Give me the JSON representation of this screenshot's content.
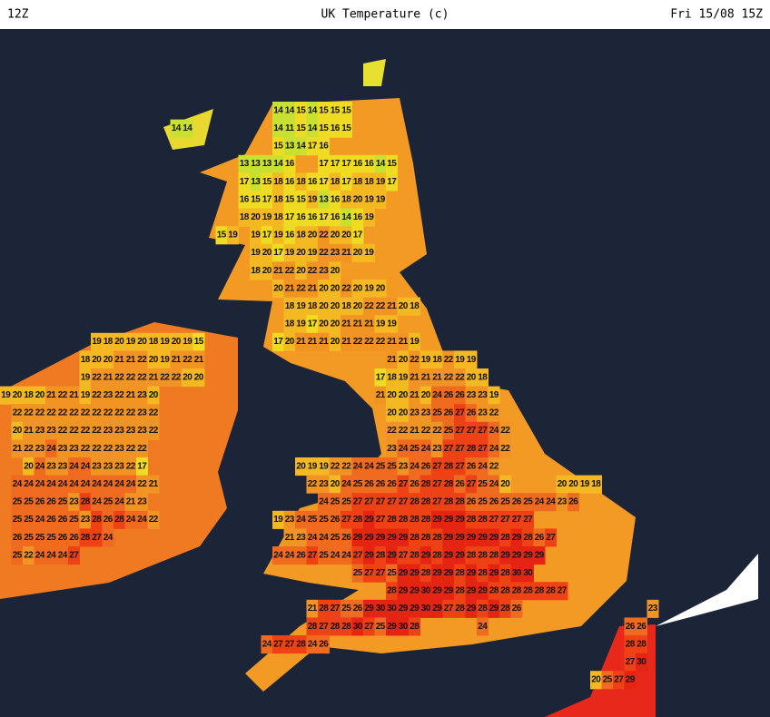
{
  "header": {
    "left": "12Z",
    "title": "UK Temperature (c)",
    "right": "Fri 15/08 15Z"
  },
  "map": {
    "temperature_rows": [
      [
        null,
        null,
        null,
        null,
        null,
        null,
        null,
        null,
        null,
        null,
        null,
        null,
        null,
        null,
        null,
        null,
        null,
        null,
        null,
        null,
        null,
        null,
        null,
        null,
        14,
        14,
        15,
        14,
        15,
        15,
        15
      ],
      [
        null,
        null,
        null,
        null,
        null,
        null,
        null,
        null,
        null,
        null,
        null,
        null,
        null,
        null,
        null,
        14,
        14,
        null,
        null,
        null,
        null,
        null,
        null,
        null,
        14,
        11,
        15,
        14,
        15,
        16,
        15
      ],
      [
        null,
        null,
        null,
        null,
        null,
        null,
        null,
        null,
        null,
        null,
        null,
        null,
        null,
        null,
        null,
        null,
        null,
        null,
        null,
        null,
        null,
        null,
        null,
        null,
        15,
        13,
        14,
        17,
        16
      ],
      [
        null,
        null,
        null,
        null,
        null,
        null,
        null,
        null,
        null,
        null,
        null,
        null,
        null,
        null,
        null,
        null,
        null,
        null,
        null,
        null,
        null,
        13,
        13,
        13,
        14,
        16,
        null,
        null,
        17,
        17,
        17,
        16,
        16,
        14,
        15
      ],
      [
        null,
        null,
        null,
        null,
        null,
        null,
        null,
        null,
        null,
        null,
        null,
        null,
        null,
        null,
        null,
        null,
        null,
        null,
        null,
        null,
        null,
        17,
        13,
        15,
        18,
        16,
        18,
        16,
        17,
        18,
        17,
        18,
        18,
        19,
        17
      ],
      [
        null,
        null,
        null,
        null,
        null,
        null,
        null,
        null,
        null,
        null,
        null,
        null,
        null,
        null,
        null,
        null,
        null,
        null,
        null,
        null,
        null,
        16,
        15,
        17,
        18,
        15,
        15,
        19,
        13,
        16,
        18,
        20,
        19,
        19
      ],
      [
        null,
        null,
        null,
        null,
        null,
        null,
        null,
        null,
        null,
        null,
        null,
        null,
        null,
        null,
        null,
        null,
        null,
        null,
        null,
        null,
        null,
        18,
        20,
        19,
        18,
        17,
        16,
        16,
        17,
        16,
        14,
        16,
        19
      ],
      [
        null,
        null,
        null,
        null,
        null,
        null,
        null,
        null,
        null,
        null,
        null,
        null,
        null,
        null,
        null,
        null,
        null,
        null,
        null,
        15,
        19,
        null,
        19,
        17,
        19,
        16,
        18,
        20,
        22,
        20,
        20,
        17
      ],
      [
        null,
        null,
        null,
        null,
        null,
        null,
        null,
        null,
        null,
        null,
        null,
        null,
        null,
        null,
        null,
        null,
        null,
        null,
        null,
        null,
        null,
        null,
        19,
        20,
        17,
        19,
        20,
        19,
        22,
        23,
        21,
        20,
        19
      ],
      [
        null,
        null,
        null,
        null,
        null,
        null,
        null,
        null,
        null,
        null,
        null,
        null,
        null,
        null,
        null,
        null,
        null,
        null,
        null,
        null,
        null,
        null,
        18,
        20,
        21,
        22,
        20,
        22,
        23,
        20
      ],
      [
        null,
        null,
        null,
        null,
        null,
        null,
        null,
        null,
        null,
        null,
        null,
        null,
        null,
        null,
        null,
        null,
        null,
        null,
        null,
        null,
        null,
        null,
        null,
        null,
        20,
        21,
        22,
        21,
        20,
        20,
        22,
        20,
        19,
        20
      ],
      [
        null,
        null,
        null,
        null,
        null,
        null,
        null,
        null,
        null,
        null,
        null,
        null,
        null,
        null,
        null,
        null,
        null,
        null,
        null,
        null,
        null,
        null,
        null,
        null,
        null,
        18,
        19,
        18,
        20,
        20,
        18,
        20,
        22,
        22,
        21,
        20,
        18
      ],
      [
        null,
        null,
        null,
        null,
        null,
        null,
        null,
        null,
        null,
        null,
        null,
        null,
        null,
        null,
        null,
        null,
        null,
        null,
        null,
        null,
        null,
        null,
        null,
        null,
        null,
        18,
        19,
        17,
        20,
        20,
        21,
        21,
        21,
        19,
        19
      ],
      [
        null,
        null,
        null,
        null,
        null,
        null,
        null,
        null,
        19,
        18,
        20,
        19,
        20,
        18,
        19,
        20,
        19,
        15,
        null,
        null,
        null,
        null,
        null,
        null,
        17,
        20,
        21,
        21,
        21,
        20,
        21,
        22,
        22,
        22,
        21,
        21,
        19
      ],
      [
        null,
        null,
        null,
        null,
        null,
        null,
        null,
        18,
        20,
        20,
        21,
        21,
        22,
        20,
        19,
        21,
        22,
        21,
        null,
        null,
        null,
        null,
        null,
        null,
        null,
        null,
        null,
        null,
        null,
        null,
        null,
        null,
        null,
        null,
        21,
        20,
        22,
        19,
        18,
        22,
        19,
        19
      ],
      [
        null,
        null,
        null,
        null,
        null,
        null,
        null,
        19,
        22,
        21,
        22,
        22,
        22,
        21,
        22,
        22,
        20,
        20,
        null,
        null,
        null,
        null,
        null,
        null,
        null,
        null,
        null,
        null,
        null,
        null,
        null,
        null,
        null,
        17,
        18,
        19,
        21,
        21,
        21,
        22,
        22,
        20,
        18
      ],
      [
        19,
        20,
        18,
        20,
        21,
        22,
        21,
        19,
        22,
        23,
        22,
        21,
        23,
        20,
        null,
        null,
        null,
        null,
        null,
        null,
        null,
        null,
        null,
        null,
        null,
        null,
        null,
        null,
        null,
        null,
        null,
        null,
        null,
        21,
        20,
        20,
        21,
        20,
        24,
        26,
        26,
        23,
        23,
        19
      ],
      [
        null,
        22,
        22,
        22,
        22,
        22,
        22,
        22,
        22,
        22,
        22,
        22,
        23,
        22,
        null,
        null,
        null,
        null,
        null,
        null,
        null,
        null,
        null,
        null,
        null,
        null,
        null,
        null,
        null,
        null,
        null,
        null,
        null,
        null,
        20,
        20,
        23,
        23,
        25,
        26,
        27,
        26,
        23,
        22
      ],
      [
        null,
        20,
        21,
        23,
        23,
        22,
        22,
        22,
        22,
        23,
        23,
        23,
        23,
        22,
        null,
        null,
        null,
        null,
        null,
        null,
        null,
        null,
        null,
        null,
        null,
        null,
        null,
        null,
        null,
        null,
        null,
        null,
        null,
        null,
        22,
        22,
        21,
        22,
        22,
        25,
        27,
        27,
        27,
        24,
        22
      ],
      [
        null,
        21,
        22,
        23,
        24,
        23,
        23,
        22,
        22,
        22,
        23,
        22,
        22,
        null,
        null,
        null,
        null,
        null,
        null,
        null,
        null,
        null,
        null,
        null,
        null,
        null,
        null,
        null,
        null,
        null,
        null,
        null,
        null,
        null,
        23,
        24,
        25,
        24,
        23,
        27,
        27,
        28,
        27,
        24,
        22
      ],
      [
        null,
        null,
        20,
        24,
        23,
        23,
        24,
        24,
        23,
        23,
        23,
        22,
        17,
        null,
        null,
        null,
        null,
        null,
        null,
        null,
        null,
        null,
        null,
        null,
        null,
        null,
        20,
        19,
        19,
        22,
        22,
        24,
        24,
        25,
        25,
        23,
        24,
        26,
        27,
        28,
        27,
        26,
        24,
        22
      ],
      [
        null,
        24,
        24,
        24,
        24,
        24,
        24,
        24,
        24,
        24,
        24,
        24,
        22,
        21,
        null,
        null,
        null,
        null,
        null,
        null,
        null,
        null,
        null,
        null,
        null,
        null,
        null,
        22,
        23,
        20,
        24,
        25,
        26,
        26,
        26,
        27,
        26,
        28,
        27,
        28,
        26,
        27,
        25,
        24,
        20,
        null,
        null,
        null,
        null,
        20,
        20,
        19,
        18
      ],
      [
        null,
        25,
        25,
        26,
        26,
        25,
        23,
        28,
        24,
        25,
        24,
        21,
        23,
        null,
        null,
        null,
        null,
        null,
        null,
        null,
        null,
        null,
        null,
        null,
        null,
        null,
        null,
        null,
        24,
        25,
        25,
        27,
        27,
        27,
        27,
        27,
        28,
        28,
        27,
        28,
        28,
        26,
        25,
        26,
        25,
        26,
        25,
        24,
        24,
        23,
        26
      ],
      [
        null,
        25,
        25,
        24,
        26,
        26,
        25,
        23,
        28,
        26,
        28,
        24,
        24,
        22,
        null,
        null,
        null,
        null,
        null,
        null,
        null,
        null,
        null,
        null,
        19,
        23,
        24,
        25,
        25,
        26,
        27,
        28,
        29,
        27,
        28,
        28,
        28,
        28,
        29,
        29,
        29,
        28,
        28,
        27,
        27,
        27,
        27
      ],
      [
        null,
        26,
        25,
        25,
        25,
        26,
        26,
        28,
        27,
        24,
        null,
        null,
        null,
        null,
        null,
        null,
        null,
        null,
        null,
        null,
        null,
        null,
        null,
        null,
        null,
        21,
        23,
        24,
        24,
        25,
        26,
        29,
        29,
        29,
        29,
        29,
        28,
        28,
        28,
        29,
        29,
        29,
        29,
        29,
        28,
        29,
        28,
        26,
        27
      ],
      [
        null,
        25,
        22,
        24,
        24,
        24,
        27,
        null,
        null,
        null,
        null,
        null,
        null,
        null,
        null,
        null,
        null,
        null,
        null,
        null,
        null,
        null,
        null,
        null,
        24,
        24,
        26,
        27,
        25,
        24,
        24,
        27,
        29,
        28,
        29,
        27,
        28,
        29,
        28,
        29,
        29,
        28,
        28,
        28,
        29,
        29,
        29,
        29
      ],
      [
        null,
        null,
        null,
        null,
        null,
        null,
        null,
        null,
        null,
        null,
        null,
        null,
        null,
        null,
        null,
        null,
        null,
        null,
        null,
        null,
        null,
        null,
        null,
        null,
        null,
        null,
        null,
        null,
        null,
        null,
        null,
        25,
        27,
        27,
        25,
        29,
        29,
        28,
        29,
        29,
        28,
        29,
        28,
        29,
        28,
        30,
        30
      ],
      [
        null,
        null,
        null,
        null,
        null,
        null,
        null,
        null,
        null,
        null,
        null,
        null,
        null,
        null,
        null,
        null,
        null,
        null,
        null,
        null,
        null,
        null,
        null,
        null,
        null,
        null,
        null,
        null,
        null,
        null,
        null,
        null,
        null,
        null,
        28,
        29,
        29,
        30,
        29,
        29,
        28,
        29,
        29,
        28,
        28,
        28,
        28,
        28,
        28,
        27
      ],
      [
        null,
        null,
        null,
        null,
        null,
        null,
        null,
        null,
        null,
        null,
        null,
        null,
        null,
        null,
        null,
        null,
        null,
        null,
        null,
        null,
        null,
        null,
        null,
        null,
        null,
        null,
        null,
        21,
        28,
        27,
        25,
        26,
        29,
        30,
        30,
        29,
        29,
        30,
        29,
        27,
        28,
        29,
        28,
        29,
        28,
        26,
        null,
        null,
        null,
        null,
        null,
        null,
        null,
        null,
        null,
        null,
        null,
        23
      ],
      [
        null,
        null,
        null,
        null,
        null,
        null,
        null,
        null,
        null,
        null,
        null,
        null,
        null,
        null,
        null,
        null,
        null,
        null,
        null,
        null,
        null,
        null,
        null,
        null,
        null,
        null,
        null,
        28,
        27,
        28,
        28,
        30,
        27,
        25,
        29,
        30,
        28,
        null,
        null,
        null,
        null,
        null,
        24,
        null,
        null,
        null,
        null,
        null,
        null,
        null,
        null,
        null,
        null,
        null,
        null,
        26,
        26
      ],
      [
        null,
        null,
        null,
        null,
        null,
        null,
        null,
        null,
        null,
        null,
        null,
        null,
        null,
        null,
        null,
        null,
        null,
        null,
        null,
        null,
        null,
        null,
        null,
        24,
        27,
        27,
        28,
        24,
        26,
        null,
        null,
        null,
        null,
        null,
        null,
        null,
        null,
        null,
        null,
        null,
        null,
        null,
        null,
        null,
        null,
        null,
        null,
        null,
        null,
        null,
        null,
        null,
        null,
        null,
        null,
        28,
        28
      ],
      [
        null,
        null,
        null,
        null,
        null,
        null,
        null,
        null,
        null,
        null,
        null,
        null,
        null,
        null,
        null,
        null,
        null,
        null,
        null,
        null,
        null,
        null,
        null,
        null,
        null,
        null,
        null,
        null,
        null,
        null,
        null,
        null,
        null,
        null,
        null,
        null,
        null,
        null,
        null,
        null,
        null,
        null,
        null,
        null,
        null,
        null,
        null,
        null,
        null,
        null,
        null,
        null,
        null,
        null,
        null,
        27,
        30
      ],
      [
        null,
        null,
        null,
        null,
        null,
        null,
        null,
        null,
        null,
        null,
        null,
        null,
        null,
        null,
        null,
        null,
        null,
        null,
        null,
        null,
        null,
        null,
        null,
        null,
        null,
        null,
        null,
        null,
        null,
        null,
        null,
        null,
        null,
        null,
        null,
        null,
        null,
        null,
        null,
        null,
        null,
        null,
        null,
        null,
        null,
        null,
        null,
        null,
        null,
        null,
        null,
        null,
        20,
        25,
        27,
        29
      ]
    ]
  }
}
